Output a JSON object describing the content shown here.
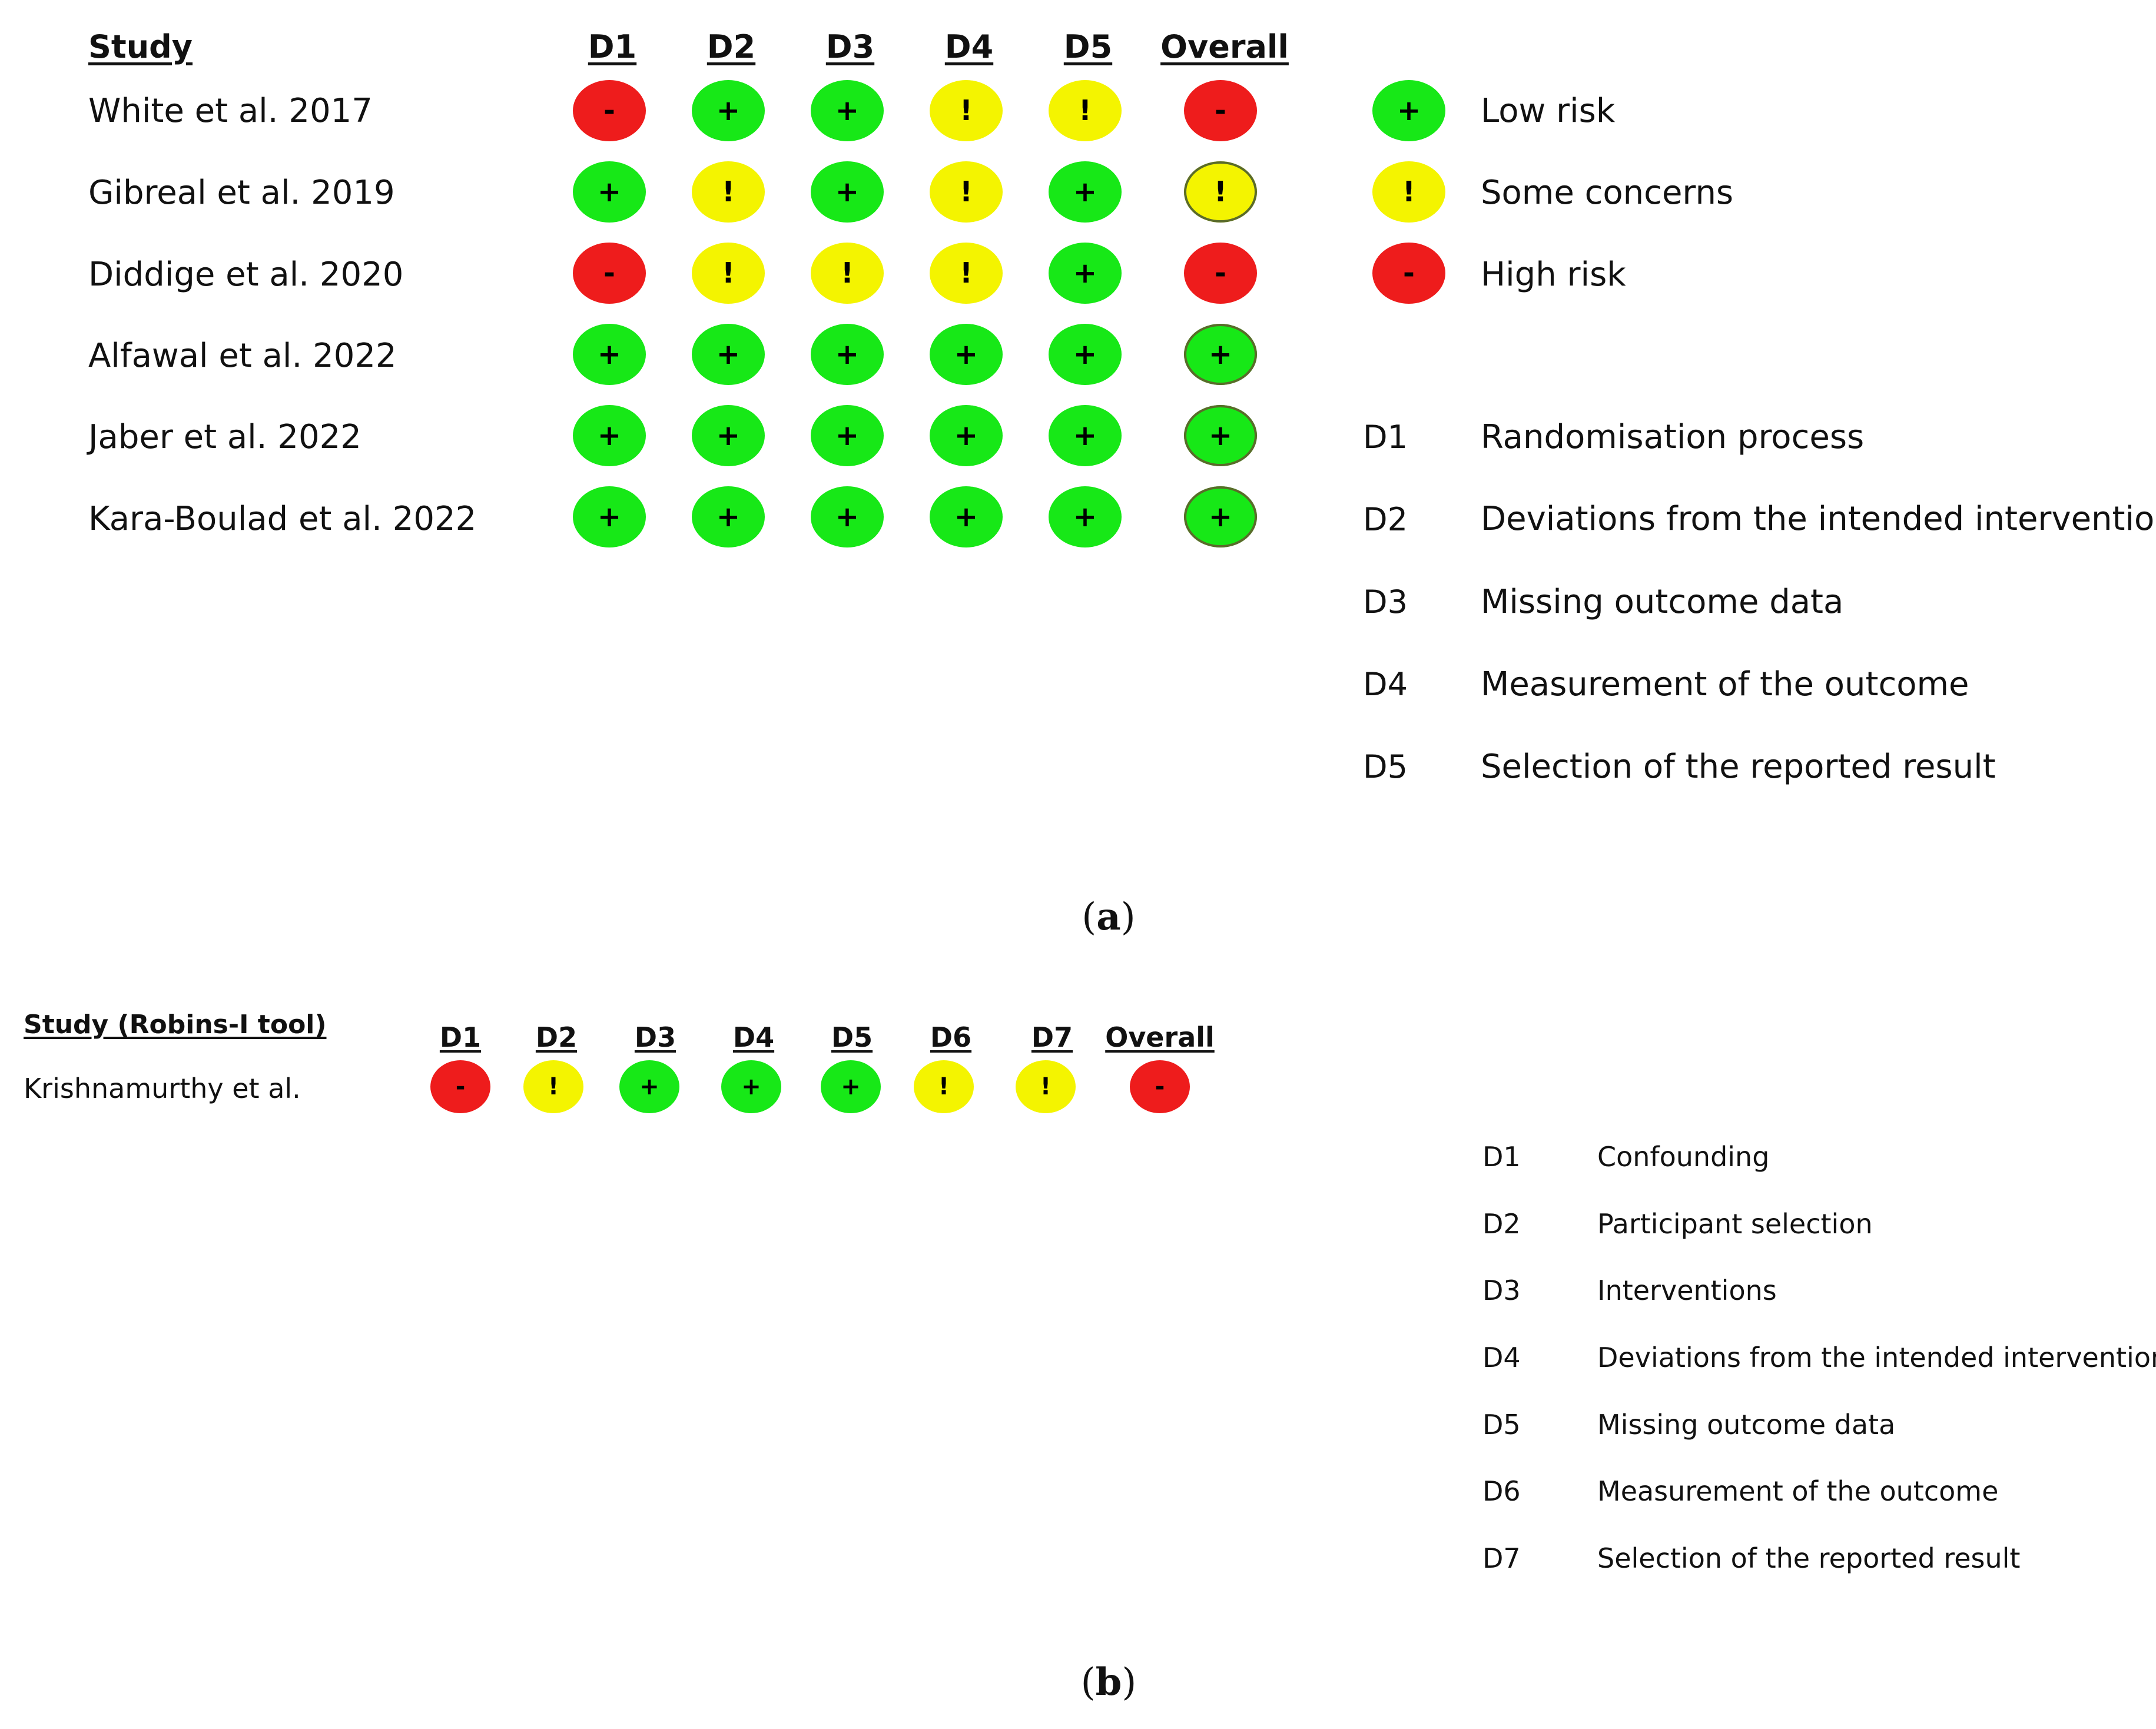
{
  "colors": {
    "low": "#17e817",
    "some": "#f4f400",
    "high": "#ee1c1c"
  },
  "symbols": {
    "low": "+",
    "some": "!",
    "high": "-"
  },
  "panel_a": {
    "study_header": "Study",
    "columns": [
      "D1",
      "D2",
      "D3",
      "D4",
      "D5",
      "Overall"
    ],
    "rows": [
      {
        "study": "White et al. 2017",
        "judgements": [
          "high",
          "low",
          "low",
          "some",
          "some",
          "high"
        ]
      },
      {
        "study": "Gibreal et al. 2019",
        "judgements": [
          "low",
          "some",
          "low",
          "some",
          "low",
          "some"
        ]
      },
      {
        "study": "Diddige et al. 2020",
        "judgements": [
          "high",
          "some",
          "some",
          "some",
          "low",
          "high"
        ]
      },
      {
        "study": "Alfawal et al. 2022",
        "judgements": [
          "low",
          "low",
          "low",
          "low",
          "low",
          "low"
        ]
      },
      {
        "study": "Jaber et al. 2022",
        "judgements": [
          "low",
          "low",
          "low",
          "low",
          "low",
          "low"
        ]
      },
      {
        "study": "Kara-Boulad et al. 2022",
        "judgements": [
          "low",
          "low",
          "low",
          "low",
          "low",
          "low"
        ]
      }
    ],
    "legend": [
      {
        "key": "low",
        "label": "Low risk"
      },
      {
        "key": "some",
        "label": "Some concerns"
      },
      {
        "key": "high",
        "label": "High risk"
      }
    ],
    "domains": [
      {
        "code": "D1",
        "label": "Randomisation process"
      },
      {
        "code": "D2",
        "label": "Deviations from the intended interventions"
      },
      {
        "code": "D3",
        "label": "Missing outcome data"
      },
      {
        "code": "D4",
        "label": "Measurement of the outcome"
      },
      {
        "code": "D5",
        "label": "Selection of the reported result"
      }
    ],
    "caption": {
      "open": "(",
      "letter": "a",
      "close": ")"
    }
  },
  "panel_b": {
    "study_header": "Study (Robins-I tool)",
    "columns": [
      "D1",
      "D2",
      "D3",
      "D4",
      "D5",
      "D6",
      "D7",
      "Overall"
    ],
    "rows": [
      {
        "study": "Krishnamurthy et al.",
        "judgements": [
          "high",
          "some",
          "low",
          "low",
          "low",
          "some",
          "some",
          "high"
        ]
      }
    ],
    "domains": [
      {
        "code": "D1",
        "label": "Confounding"
      },
      {
        "code": "D2",
        "label": "Participant selection"
      },
      {
        "code": "D3",
        "label": "Interventions"
      },
      {
        "code": "D4",
        "label": "Deviations from the intended interventions"
      },
      {
        "code": "D5",
        "label": "Missing outcome data"
      },
      {
        "code": "D6",
        "label": "Measurement of the outcome"
      },
      {
        "code": "D7",
        "label": "Selection of the reported result"
      }
    ],
    "caption": {
      "open": "(",
      "letter": "b",
      "close": ")"
    }
  }
}
